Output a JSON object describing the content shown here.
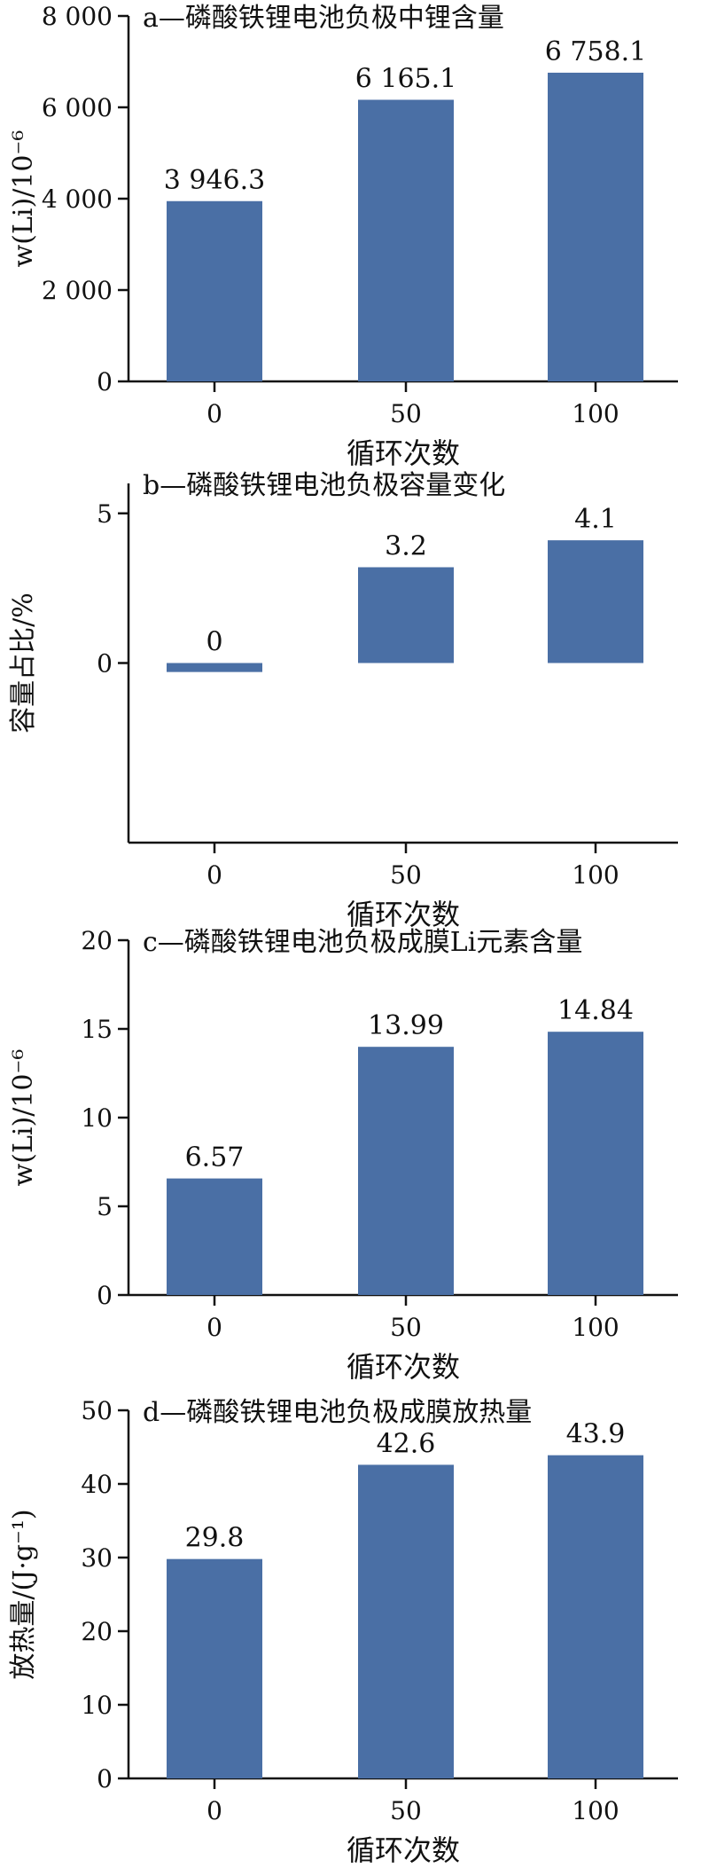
{
  "colors": {
    "bar": "#4a6fa5",
    "axis": "#111111"
  },
  "chart_data": [
    {
      "type": "bar",
      "title": "a—磷酸铁锂电池负极中锂含量",
      "ylabel": "w(Li)/10⁻⁶",
      "xlabel": "循环次数",
      "categories": [
        "0",
        "50",
        "100"
      ],
      "values": [
        3946.3,
        6165.1,
        6758.1
      ],
      "value_labels": [
        "3 946.3",
        "6 165.1",
        "6 758.1"
      ],
      "ylim": [
        0,
        8000
      ],
      "yticks": [
        0,
        2000,
        4000,
        6000,
        8000
      ],
      "ytick_labels": [
        "0",
        "2 000",
        "4 000",
        "6 000",
        "8 000"
      ],
      "grid": false
    },
    {
      "type": "bar",
      "title": "b—磷酸铁锂电池负极容量变化",
      "ylabel": "容量占比/%",
      "xlabel": "循环次数",
      "categories": [
        "0",
        "50",
        "100"
      ],
      "values": [
        -0.3,
        3.2,
        4.1
      ],
      "value_labels": [
        "0",
        "3.2",
        "4.1"
      ],
      "ylim": [
        -6,
        6
      ],
      "yticks": [
        0,
        5
      ],
      "ytick_labels": [
        "0",
        "5"
      ],
      "grid": false
    },
    {
      "type": "bar",
      "title": "c—磷酸铁锂电池负极成膜Li元素含量",
      "ylabel": "w(Li)/10⁻⁶",
      "xlabel": "循环次数",
      "categories": [
        "0",
        "50",
        "100"
      ],
      "values": [
        6.57,
        13.99,
        14.84
      ],
      "value_labels": [
        "6.57",
        "13.99",
        "14.84"
      ],
      "ylim": [
        0,
        20
      ],
      "yticks": [
        0,
        5,
        10,
        15,
        20
      ],
      "ytick_labels": [
        "0",
        "5",
        "10",
        "15",
        "20"
      ],
      "grid": false
    },
    {
      "type": "bar",
      "title": "d—磷酸铁锂电池负极成膜放热量",
      "ylabel": "放热量/(J·g⁻¹)",
      "xlabel": "循环次数",
      "categories": [
        "0",
        "50",
        "100"
      ],
      "values": [
        29.8,
        42.6,
        43.9
      ],
      "value_labels": [
        "29.8",
        "42.6",
        "43.9"
      ],
      "ylim": [
        0,
        50
      ],
      "yticks": [
        0,
        10,
        20,
        30,
        40,
        50
      ],
      "ytick_labels": [
        "0",
        "10",
        "20",
        "30",
        "40",
        "50"
      ],
      "grid": false
    }
  ]
}
